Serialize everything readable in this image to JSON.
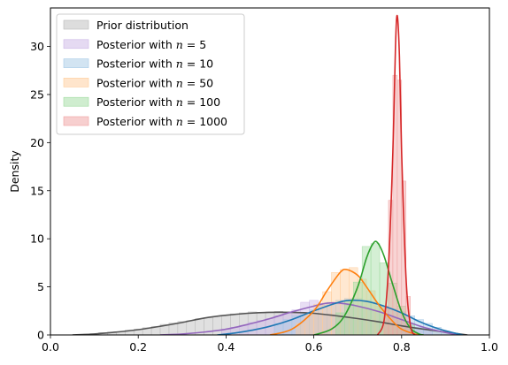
{
  "chart_data": {
    "type": "area",
    "title": "",
    "xlabel": "",
    "ylabel": "Density",
    "xlim": [
      0.0,
      1.0
    ],
    "ylim": [
      0,
      34
    ],
    "x_ticks": [
      "0.0",
      "0.2",
      "0.4",
      "0.6",
      "0.8",
      "1.0"
    ],
    "y_ticks": [
      "0",
      "5",
      "10",
      "15",
      "20",
      "25",
      "30"
    ],
    "legend_position": "top-left",
    "grid": false,
    "series": [
      {
        "name": "Prior distribution",
        "color": "#555555",
        "fill": "#bbbbbb",
        "kde": [
          [
            0.05,
            0.0
          ],
          [
            0.1,
            0.1
          ],
          [
            0.15,
            0.3
          ],
          [
            0.2,
            0.55
          ],
          [
            0.25,
            0.9
          ],
          [
            0.3,
            1.3
          ],
          [
            0.35,
            1.75
          ],
          [
            0.4,
            2.05
          ],
          [
            0.45,
            2.25
          ],
          [
            0.5,
            2.35
          ],
          [
            0.55,
            2.35
          ],
          [
            0.6,
            2.25
          ],
          [
            0.65,
            2.0
          ],
          [
            0.7,
            1.7
          ],
          [
            0.75,
            1.35
          ],
          [
            0.8,
            0.95
          ],
          [
            0.85,
            0.6
          ],
          [
            0.9,
            0.3
          ],
          [
            0.95,
            0.0
          ]
        ],
        "hist": [
          [
            0.1,
            0.15
          ],
          [
            0.12,
            0.25
          ],
          [
            0.14,
            0.3
          ],
          [
            0.16,
            0.35
          ],
          [
            0.18,
            0.5
          ],
          [
            0.2,
            0.6
          ],
          [
            0.22,
            0.75
          ],
          [
            0.24,
            0.9
          ],
          [
            0.26,
            1.1
          ],
          [
            0.28,
            1.25
          ],
          [
            0.3,
            1.4
          ],
          [
            0.32,
            1.5
          ],
          [
            0.34,
            1.7
          ],
          [
            0.36,
            1.8
          ],
          [
            0.38,
            1.95
          ],
          [
            0.4,
            2.05
          ],
          [
            0.42,
            2.2
          ],
          [
            0.44,
            2.3
          ],
          [
            0.46,
            2.4
          ],
          [
            0.48,
            2.35
          ],
          [
            0.5,
            2.4
          ],
          [
            0.52,
            2.45
          ],
          [
            0.54,
            2.3
          ],
          [
            0.56,
            2.3
          ],
          [
            0.58,
            2.25
          ],
          [
            0.6,
            2.2
          ],
          [
            0.62,
            2.1
          ],
          [
            0.64,
            2.0
          ],
          [
            0.66,
            1.9
          ],
          [
            0.68,
            1.8
          ],
          [
            0.7,
            1.7
          ],
          [
            0.72,
            1.55
          ],
          [
            0.74,
            1.4
          ],
          [
            0.76,
            1.25
          ],
          [
            0.78,
            1.1
          ],
          [
            0.8,
            0.95
          ],
          [
            0.82,
            0.75
          ],
          [
            0.84,
            0.6
          ],
          [
            0.86,
            0.5
          ],
          [
            0.88,
            0.35
          ],
          [
            0.9,
            0.25
          ],
          [
            0.92,
            0.15
          ]
        ]
      },
      {
        "name": "Posterior with $n = 5$",
        "label_plain": "Posterior with ",
        "label_var": "n",
        "label_value": " = 5",
        "color": "#9467bd",
        "fill": "#cbb6e6",
        "kde": [
          [
            0.25,
            0.0
          ],
          [
            0.3,
            0.1
          ],
          [
            0.35,
            0.3
          ],
          [
            0.4,
            0.6
          ],
          [
            0.45,
            1.1
          ],
          [
            0.5,
            1.7
          ],
          [
            0.55,
            2.4
          ],
          [
            0.6,
            3.0
          ],
          [
            0.63,
            3.3
          ],
          [
            0.66,
            3.3
          ],
          [
            0.7,
            3.0
          ],
          [
            0.75,
            2.4
          ],
          [
            0.8,
            1.6
          ],
          [
            0.85,
            0.8
          ],
          [
            0.9,
            0.25
          ],
          [
            0.93,
            0.0
          ]
        ],
        "hist": [
          [
            0.4,
            0.6
          ],
          [
            0.42,
            0.8
          ],
          [
            0.44,
            1.0
          ],
          [
            0.46,
            1.3
          ],
          [
            0.48,
            1.5
          ],
          [
            0.5,
            1.7
          ],
          [
            0.52,
            2.0
          ],
          [
            0.54,
            2.3
          ],
          [
            0.56,
            2.6
          ],
          [
            0.58,
            3.4
          ],
          [
            0.6,
            3.6
          ],
          [
            0.62,
            3.3
          ],
          [
            0.64,
            3.3
          ],
          [
            0.66,
            3.2
          ],
          [
            0.68,
            3.1
          ],
          [
            0.7,
            2.9
          ],
          [
            0.72,
            2.7
          ],
          [
            0.74,
            2.5
          ],
          [
            0.76,
            2.1
          ],
          [
            0.78,
            1.8
          ],
          [
            0.8,
            1.5
          ],
          [
            0.82,
            1.1
          ],
          [
            0.84,
            0.8
          ],
          [
            0.86,
            0.5
          ]
        ]
      },
      {
        "name": "Posterior with $n = 10$",
        "label_plain": "Posterior with ",
        "label_var": "n",
        "label_value": " = 10",
        "color": "#1f77b4",
        "fill": "#a6c9e6",
        "kde": [
          [
            0.38,
            0.0
          ],
          [
            0.42,
            0.2
          ],
          [
            0.46,
            0.5
          ],
          [
            0.5,
            0.9
          ],
          [
            0.55,
            1.6
          ],
          [
            0.6,
            2.5
          ],
          [
            0.65,
            3.3
          ],
          [
            0.68,
            3.6
          ],
          [
            0.72,
            3.5
          ],
          [
            0.76,
            3.0
          ],
          [
            0.8,
            2.3
          ],
          [
            0.84,
            1.4
          ],
          [
            0.88,
            0.7
          ],
          [
            0.92,
            0.2
          ],
          [
            0.94,
            0.0
          ]
        ],
        "hist": [
          [
            0.52,
            1.2
          ],
          [
            0.54,
            1.6
          ],
          [
            0.56,
            2.0
          ],
          [
            0.58,
            2.3
          ],
          [
            0.6,
            2.6
          ],
          [
            0.62,
            3.1
          ],
          [
            0.64,
            3.4
          ],
          [
            0.66,
            3.6
          ],
          [
            0.68,
            3.8
          ],
          [
            0.7,
            3.8
          ],
          [
            0.72,
            3.6
          ],
          [
            0.74,
            3.3
          ],
          [
            0.76,
            3.0
          ],
          [
            0.78,
            2.7
          ],
          [
            0.8,
            2.4
          ],
          [
            0.82,
            2.0
          ],
          [
            0.84,
            1.6
          ],
          [
            0.86,
            1.2
          ],
          [
            0.88,
            0.8
          ],
          [
            0.9,
            0.4
          ]
        ]
      },
      {
        "name": "Posterior with $n = 50$",
        "label_plain": "Posterior with ",
        "label_var": "n",
        "label_value": " = 50",
        "color": "#ff7f0e",
        "fill": "#ffcc99",
        "kde": [
          [
            0.5,
            0.0
          ],
          [
            0.55,
            0.6
          ],
          [
            0.6,
            2.5
          ],
          [
            0.63,
            4.6
          ],
          [
            0.66,
            6.5
          ],
          [
            0.675,
            6.8
          ],
          [
            0.7,
            6.2
          ],
          [
            0.72,
            5.0
          ],
          [
            0.75,
            3.0
          ],
          [
            0.78,
            1.4
          ],
          [
            0.8,
            0.6
          ],
          [
            0.83,
            0.1
          ],
          [
            0.85,
            0.0
          ]
        ],
        "hist": [
          [
            0.57,
            1.2
          ],
          [
            0.59,
            2.3
          ],
          [
            0.61,
            3.2
          ],
          [
            0.63,
            4.5
          ],
          [
            0.65,
            6.5
          ],
          [
            0.67,
            6.8
          ],
          [
            0.69,
            7.0
          ],
          [
            0.71,
            5.8
          ],
          [
            0.73,
            4.6
          ],
          [
            0.75,
            3.0
          ],
          [
            0.77,
            1.8
          ],
          [
            0.79,
            0.9
          ]
        ]
      },
      {
        "name": "Posterior with $n = 100$",
        "label_plain": "Posterior with ",
        "label_var": "n",
        "label_value": " = 100",
        "color": "#2ca02c",
        "fill": "#9fdb9f",
        "kde": [
          [
            0.6,
            0.0
          ],
          [
            0.64,
            0.6
          ],
          [
            0.67,
            2.0
          ],
          [
            0.7,
            5.0
          ],
          [
            0.72,
            8.0
          ],
          [
            0.735,
            9.5
          ],
          [
            0.745,
            9.6
          ],
          [
            0.76,
            8.2
          ],
          [
            0.78,
            5.2
          ],
          [
            0.8,
            2.4
          ],
          [
            0.82,
            0.7
          ],
          [
            0.84,
            0.1
          ],
          [
            0.85,
            0.0
          ]
        ],
        "hist": [
          [
            0.66,
            2.3
          ],
          [
            0.68,
            3.5
          ],
          [
            0.7,
            5.5
          ],
          [
            0.72,
            9.2
          ],
          [
            0.74,
            9.5
          ],
          [
            0.76,
            7.5
          ],
          [
            0.78,
            5.4
          ],
          [
            0.8,
            3.0
          ],
          [
            0.82,
            1.2
          ]
        ]
      },
      {
        "name": "Posterior with $n = 1000$",
        "label_plain": "Posterior with ",
        "label_var": "n",
        "label_value": " = 1000",
        "color": "#d62728",
        "fill": "#f0a0a0",
        "kde": [
          [
            0.745,
            0.0
          ],
          [
            0.76,
            1.5
          ],
          [
            0.77,
            7.0
          ],
          [
            0.78,
            19.0
          ],
          [
            0.786,
            30.0
          ],
          [
            0.79,
            33.2
          ],
          [
            0.795,
            29.0
          ],
          [
            0.8,
            19.0
          ],
          [
            0.81,
            6.0
          ],
          [
            0.82,
            1.0
          ],
          [
            0.83,
            0.0
          ]
        ],
        "hist": [
          [
            0.765,
            3.0
          ],
          [
            0.775,
            14.0
          ],
          [
            0.785,
            27.0
          ],
          [
            0.795,
            26.5
          ],
          [
            0.805,
            16.0
          ],
          [
            0.815,
            4.0
          ]
        ]
      }
    ]
  }
}
